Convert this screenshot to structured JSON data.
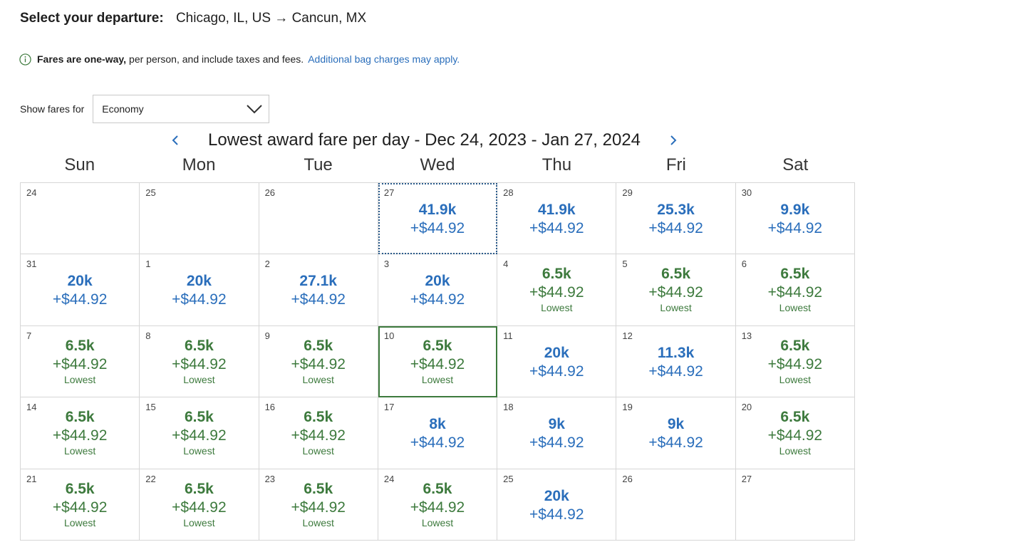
{
  "header": {
    "label": "Select your departure:",
    "route": "Chicago, IL, US → Cancun, MX"
  },
  "notice": {
    "bold": "Fares are one-way,",
    "text": "per person, and include taxes and fees.",
    "link": "Additional bag charges may apply."
  },
  "fare_filter": {
    "label": "Show fares for",
    "selected": "Economy"
  },
  "calendar": {
    "title": "Lowest award fare per day - Dec 24, 2023 - Jan 27, 2024",
    "weekdays": [
      "Sun",
      "Mon",
      "Tue",
      "Wed",
      "Thu",
      "Fri",
      "Sat"
    ],
    "lowest_label": "Lowest",
    "colors": {
      "regular": "#2a6ebb",
      "lowest": "#3d7a3d"
    },
    "cells": [
      {
        "day": "24"
      },
      {
        "day": "25"
      },
      {
        "day": "26"
      },
      {
        "day": "27",
        "miles": "41.9k",
        "tax": "+$44.92",
        "focused": true
      },
      {
        "day": "28",
        "miles": "41.9k",
        "tax": "+$44.92"
      },
      {
        "day": "29",
        "miles": "25.3k",
        "tax": "+$44.92"
      },
      {
        "day": "30",
        "miles": "9.9k",
        "tax": "+$44.92"
      },
      {
        "day": "31",
        "miles": "20k",
        "tax": "+$44.92"
      },
      {
        "day": "1",
        "miles": "20k",
        "tax": "+$44.92"
      },
      {
        "day": "2",
        "miles": "27.1k",
        "tax": "+$44.92"
      },
      {
        "day": "3",
        "miles": "20k",
        "tax": "+$44.92"
      },
      {
        "day": "4",
        "miles": "6.5k",
        "tax": "+$44.92",
        "lowest": true
      },
      {
        "day": "5",
        "miles": "6.5k",
        "tax": "+$44.92",
        "lowest": true
      },
      {
        "day": "6",
        "miles": "6.5k",
        "tax": "+$44.92",
        "lowest": true
      },
      {
        "day": "7",
        "miles": "6.5k",
        "tax": "+$44.92",
        "lowest": true
      },
      {
        "day": "8",
        "miles": "6.5k",
        "tax": "+$44.92",
        "lowest": true
      },
      {
        "day": "9",
        "miles": "6.5k",
        "tax": "+$44.92",
        "lowest": true
      },
      {
        "day": "10",
        "miles": "6.5k",
        "tax": "+$44.92",
        "lowest": true,
        "selected": true
      },
      {
        "day": "11",
        "miles": "20k",
        "tax": "+$44.92"
      },
      {
        "day": "12",
        "miles": "11.3k",
        "tax": "+$44.92"
      },
      {
        "day": "13",
        "miles": "6.5k",
        "tax": "+$44.92",
        "lowest": true
      },
      {
        "day": "14",
        "miles": "6.5k",
        "tax": "+$44.92",
        "lowest": true
      },
      {
        "day": "15",
        "miles": "6.5k",
        "tax": "+$44.92",
        "lowest": true
      },
      {
        "day": "16",
        "miles": "6.5k",
        "tax": "+$44.92",
        "lowest": true
      },
      {
        "day": "17",
        "miles": "8k",
        "tax": "+$44.92"
      },
      {
        "day": "18",
        "miles": "9k",
        "tax": "+$44.92"
      },
      {
        "day": "19",
        "miles": "9k",
        "tax": "+$44.92"
      },
      {
        "day": "20",
        "miles": "6.5k",
        "tax": "+$44.92",
        "lowest": true
      },
      {
        "day": "21",
        "miles": "6.5k",
        "tax": "+$44.92",
        "lowest": true
      },
      {
        "day": "22",
        "miles": "6.5k",
        "tax": "+$44.92",
        "lowest": true
      },
      {
        "day": "23",
        "miles": "6.5k",
        "tax": "+$44.92",
        "lowest": true
      },
      {
        "day": "24",
        "miles": "6.5k",
        "tax": "+$44.92",
        "lowest": true
      },
      {
        "day": "25",
        "miles": "20k",
        "tax": "+$44.92"
      },
      {
        "day": "26"
      },
      {
        "day": "27"
      }
    ]
  }
}
